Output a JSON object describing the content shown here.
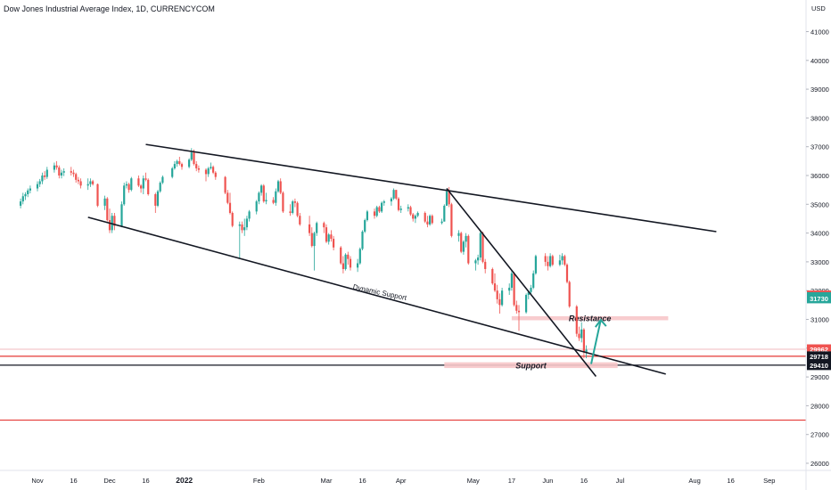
{
  "header": {
    "title": "Dow Jones Industrial Average Index, 1D, CURRENCYCOM"
  },
  "colors": {
    "up": "#26a69a",
    "down": "#ef5350",
    "line": "#131722",
    "zone": "#f7c6c9",
    "hline": "#e53935"
  },
  "chart_data": {
    "type": "candlestick",
    "currency": "USD",
    "y_ticks": [
      26000,
      27000,
      28000,
      29000,
      30000,
      31000,
      32000,
      33000,
      34000,
      35000,
      36000,
      37000,
      38000,
      39000,
      40000,
      41000
    ],
    "x_ticks": [
      {
        "label": "Nov",
        "date": "2021-11-01"
      },
      {
        "label": "16",
        "date": "2021-11-16"
      },
      {
        "label": "Dec",
        "date": "2021-12-01"
      },
      {
        "label": "16",
        "date": "2021-12-16"
      },
      {
        "label": "2022",
        "date": "2022-01-01"
      },
      {
        "label": "Feb",
        "date": "2022-02-01"
      },
      {
        "label": "Mar",
        "date": "2022-03-01"
      },
      {
        "label": "16",
        "date": "2022-03-16"
      },
      {
        "label": "Apr",
        "date": "2022-04-01"
      },
      {
        "label": "May",
        "date": "2022-05-01"
      },
      {
        "label": "17",
        "date": "2022-05-17"
      },
      {
        "label": "Jun",
        "date": "2022-06-01"
      },
      {
        "label": "16",
        "date": "2022-06-16"
      },
      {
        "label": "Jul",
        "date": "2022-07-01"
      },
      {
        "label": "Aug",
        "date": "2022-08-01"
      },
      {
        "label": "16",
        "date": "2022-08-16"
      },
      {
        "label": "Sep",
        "date": "2022-09-01"
      }
    ],
    "price_labels": [
      {
        "value": 31833,
        "text": "31833",
        "color": "#ef5350"
      },
      {
        "value": 31775,
        "text": "31775",
        "color": "#26a69a"
      },
      {
        "value": 31730,
        "text": "31730",
        "color": "#26a69a"
      },
      {
        "value": 29962,
        "text": "29962",
        "color": "#ef5350"
      },
      {
        "value": 29718,
        "text": "29718",
        "color": "#131722"
      },
      {
        "value": 29410,
        "text": "29410",
        "color": "#131722"
      }
    ],
    "horizontal_lines": [
      {
        "value": 29962,
        "color": "#f4c7c9"
      },
      {
        "value": 29718,
        "color": "#e53935"
      },
      {
        "value": 29410,
        "color": "#131722"
      },
      {
        "value": 27500,
        "color": "#e53935"
      }
    ],
    "trendlines": [
      {
        "from": [
          "2021-12-16",
          37080
        ],
        "to": [
          "2022-08-10",
          34050
        ]
      },
      {
        "from": [
          "2021-11-22",
          34550
        ],
        "to": [
          "2022-07-20",
          29100
        ]
      },
      {
        "from": [
          "2022-04-20",
          35550
        ],
        "to": [
          "2022-06-21",
          29020
        ]
      }
    ],
    "zones": [
      {
        "label": "Resistance",
        "from": "2022-05-17",
        "to": "2022-07-21",
        "low": 30970,
        "high": 31110
      },
      {
        "label": "Support",
        "from": "2022-04-19",
        "to": "2022-06-30",
        "low": 29310,
        "high": 29510
      }
    ],
    "annotations": [
      {
        "text": "Dynamic Support",
        "at": [
          "2022-03-23",
          31860
        ],
        "angle": 12
      }
    ],
    "arrow": {
      "from": [
        "2022-06-19",
        29450
      ],
      "to": [
        "2022-06-23",
        30980
      ]
    },
    "candles": [
      [
        "2021-10-25",
        34950,
        35200,
        34860,
        35100
      ],
      [
        "2021-10-26",
        35100,
        35400,
        35000,
        35280
      ],
      [
        "2021-10-27",
        35280,
        35420,
        35150,
        35350
      ],
      [
        "2021-10-28",
        35350,
        35550,
        35250,
        35480
      ],
      [
        "2021-10-29",
        35480,
        35650,
        35380,
        35550
      ],
      [
        "2021-11-01",
        35550,
        35800,
        35450,
        35700
      ],
      [
        "2021-11-02",
        35700,
        35880,
        35600,
        35800
      ],
      [
        "2021-11-03",
        35800,
        36100,
        35700,
        36000
      ],
      [
        "2021-11-04",
        36000,
        36150,
        35850,
        35950
      ],
      [
        "2021-11-05",
        35950,
        36300,
        35880,
        36200
      ],
      [
        "2021-11-08",
        36200,
        36450,
        36100,
        36350
      ],
      [
        "2021-11-09",
        36350,
        36500,
        36200,
        36280
      ],
      [
        "2021-11-10",
        36280,
        36350,
        35900,
        36000
      ],
      [
        "2021-11-11",
        36000,
        36200,
        35900,
        36100
      ],
      [
        "2021-11-12",
        36100,
        36250,
        35980,
        36150
      ],
      [
        "2021-11-15",
        36150,
        36300,
        36000,
        36100
      ],
      [
        "2021-11-16",
        36100,
        36200,
        35950,
        36050
      ],
      [
        "2021-11-17",
        36050,
        36100,
        35750,
        35850
      ],
      [
        "2021-11-18",
        35850,
        35950,
        35700,
        35800
      ],
      [
        "2021-11-19",
        35800,
        35900,
        35550,
        35650
      ],
      [
        "2021-11-22",
        35650,
        35900,
        35500,
        35700
      ],
      [
        "2021-11-23",
        35700,
        35900,
        35600,
        35800
      ],
      [
        "2021-11-24",
        35800,
        35850,
        35650,
        35700
      ],
      [
        "2021-11-26",
        35700,
        35720,
        34900,
        34950
      ],
      [
        "2021-11-29",
        34950,
        35300,
        34800,
        35200
      ],
      [
        "2021-11-30",
        35200,
        35250,
        34400,
        34450
      ],
      [
        "2021-12-01",
        34450,
        34850,
        34000,
        34100
      ],
      [
        "2021-12-02",
        34100,
        34700,
        34000,
        34600
      ],
      [
        "2021-12-03",
        34600,
        34700,
        34100,
        34250
      ],
      [
        "2021-12-06",
        34250,
        35100,
        34200,
        35000
      ],
      [
        "2021-12-07",
        35000,
        35750,
        34950,
        35650
      ],
      [
        "2021-12-08",
        35650,
        35800,
        35550,
        35700
      ],
      [
        "2021-12-09",
        35700,
        35750,
        35400,
        35500
      ],
      [
        "2021-12-10",
        35500,
        35950,
        35450,
        35900
      ],
      [
        "2021-12-13",
        35900,
        36000,
        35600,
        35650
      ],
      [
        "2021-12-14",
        35650,
        35700,
        35400,
        35550
      ],
      [
        "2021-12-15",
        35550,
        36000,
        35350,
        35900
      ],
      [
        "2021-12-16",
        35900,
        36100,
        35800,
        35850
      ],
      [
        "2021-12-17",
        35850,
        35900,
        35300,
        35350
      ],
      [
        "2021-12-20",
        35350,
        35400,
        34700,
        34950
      ],
      [
        "2021-12-21",
        34950,
        35500,
        34900,
        35450
      ],
      [
        "2021-12-22",
        35450,
        35800,
        35400,
        35750
      ],
      [
        "2021-12-23",
        35750,
        36000,
        35700,
        35950
      ],
      [
        "2021-12-27",
        35950,
        36300,
        35900,
        36250
      ],
      [
        "2021-12-28",
        36250,
        36500,
        36200,
        36400
      ],
      [
        "2021-12-29",
        36400,
        36550,
        36300,
        36500
      ],
      [
        "2021-12-30",
        36500,
        36650,
        36350,
        36400
      ],
      [
        "2021-12-31",
        36400,
        36450,
        36200,
        36300
      ],
      [
        "2022-01-03",
        36300,
        36600,
        36250,
        36550
      ],
      [
        "2022-01-04",
        36550,
        36950,
        36500,
        36800
      ],
      [
        "2022-01-05",
        36800,
        36900,
        36350,
        36400
      ],
      [
        "2022-01-06",
        36400,
        36500,
        36150,
        36250
      ],
      [
        "2022-01-07",
        36250,
        36350,
        36100,
        36200
      ],
      [
        "2022-01-10",
        36200,
        36250,
        35800,
        36050
      ],
      [
        "2022-01-11",
        36050,
        36300,
        35950,
        36250
      ],
      [
        "2022-01-12",
        36250,
        36450,
        36200,
        36300
      ],
      [
        "2022-01-13",
        36300,
        36350,
        36050,
        36100
      ],
      [
        "2022-01-14",
        36100,
        36150,
        35850,
        35950
      ],
      [
        "2022-01-18",
        35950,
        35980,
        35350,
        35400
      ],
      [
        "2022-01-19",
        35400,
        35500,
        35000,
        35050
      ],
      [
        "2022-01-20",
        35050,
        35400,
        34650,
        34700
      ],
      [
        "2022-01-21",
        34700,
        34750,
        34200,
        34250
      ],
      [
        "2022-01-24",
        34250,
        34400,
        33100,
        34300
      ],
      [
        "2022-01-25",
        34300,
        34400,
        34000,
        34100
      ],
      [
        "2022-01-26",
        34100,
        34500,
        33900,
        34200
      ],
      [
        "2022-01-27",
        34200,
        34600,
        34100,
        34500
      ],
      [
        "2022-01-28",
        34500,
        34800,
        34400,
        34750
      ],
      [
        "2022-01-31",
        34750,
        35150,
        34650,
        35100
      ],
      [
        "2022-02-01",
        35100,
        35450,
        35000,
        35400
      ],
      [
        "2022-02-02",
        35400,
        35700,
        35300,
        35650
      ],
      [
        "2022-02-03",
        35650,
        35700,
        35050,
        35100
      ],
      [
        "2022-02-04",
        35100,
        35400,
        35000,
        35150
      ],
      [
        "2022-02-07",
        35150,
        35250,
        35000,
        35050
      ],
      [
        "2022-02-08",
        35050,
        35550,
        34950,
        35450
      ],
      [
        "2022-02-09",
        35450,
        35850,
        35400,
        35800
      ],
      [
        "2022-02-10",
        35800,
        35900,
        35350,
        35400
      ],
      [
        "2022-02-11",
        35400,
        35450,
        34700,
        34750
      ],
      [
        "2022-02-14",
        34750,
        35000,
        34600,
        34700
      ],
      [
        "2022-02-15",
        34700,
        35150,
        34650,
        35100
      ],
      [
        "2022-02-16",
        35100,
        35200,
        34900,
        35050
      ],
      [
        "2022-02-17",
        35050,
        35100,
        34550,
        34600
      ],
      [
        "2022-02-18",
        34600,
        34700,
        34250,
        34300
      ],
      [
        "2022-02-22",
        34300,
        34600,
        33900,
        34000
      ],
      [
        "2022-02-23",
        34000,
        34200,
        33500,
        33550
      ],
      [
        "2022-02-24",
        33550,
        34050,
        32700,
        34000
      ],
      [
        "2022-02-25",
        34000,
        34400,
        33900,
        34350
      ],
      [
        "2022-02-28",
        34350,
        34400,
        34000,
        34200
      ],
      [
        "2022-03-01",
        34200,
        34300,
        33650,
        33700
      ],
      [
        "2022-03-02",
        33700,
        34000,
        33600,
        33950
      ],
      [
        "2022-03-03",
        33950,
        34100,
        33700,
        33800
      ],
      [
        "2022-03-04",
        33800,
        33900,
        33400,
        33500
      ],
      [
        "2022-03-07",
        33500,
        33550,
        32900,
        32950
      ],
      [
        "2022-03-08",
        32950,
        33200,
        32600,
        32750
      ],
      [
        "2022-03-09",
        32750,
        33300,
        32700,
        33250
      ],
      [
        "2022-03-10",
        33250,
        33350,
        32900,
        33100
      ],
      [
        "2022-03-11",
        33100,
        33200,
        32700,
        32800
      ],
      [
        "2022-03-14",
        32800,
        33100,
        32650,
        32950
      ],
      [
        "2022-03-15",
        32950,
        33500,
        32900,
        33450
      ],
      [
        "2022-03-16",
        33450,
        34100,
        33400,
        34050
      ],
      [
        "2022-03-17",
        34050,
        34500,
        34000,
        34450
      ],
      [
        "2022-03-18",
        34450,
        34800,
        34400,
        34750
      ],
      [
        "2022-03-21",
        34750,
        34850,
        34500,
        34600
      ],
      [
        "2022-03-22",
        34600,
        34950,
        34550,
        34900
      ],
      [
        "2022-03-23",
        34900,
        34950,
        34700,
        34750
      ],
      [
        "2022-03-24",
        34750,
        35100,
        34700,
        35050
      ],
      [
        "2022-03-25",
        35050,
        35150,
        34950,
        35100
      ],
      [
        "2022-03-28",
        35100,
        35250,
        34950,
        35200
      ],
      [
        "2022-03-29",
        35200,
        35550,
        35150,
        35500
      ],
      [
        "2022-03-30",
        35500,
        35500,
        35150,
        35200
      ],
      [
        "2022-03-31",
        35200,
        35250,
        34750,
        34800
      ],
      [
        "2022-04-01",
        34800,
        34950,
        34700,
        34850
      ],
      [
        "2022-04-04",
        34850,
        35000,
        34750,
        34900
      ],
      [
        "2022-04-05",
        34900,
        34950,
        34600,
        34650
      ],
      [
        "2022-04-06",
        34650,
        34700,
        34400,
        34500
      ],
      [
        "2022-04-07",
        34500,
        34650,
        34350,
        34600
      ],
      [
        "2022-04-08",
        34600,
        34750,
        34550,
        34700
      ],
      [
        "2022-04-11",
        34700,
        34750,
        34350,
        34400
      ],
      [
        "2022-04-12",
        34400,
        34600,
        34200,
        34300
      ],
      [
        "2022-04-13",
        34300,
        34650,
        34250,
        34600
      ],
      [
        "2022-04-14",
        34600,
        34650,
        34300,
        34350
      ],
      [
        "2022-04-18",
        34350,
        34500,
        34300,
        34400
      ],
      [
        "2022-04-19",
        34400,
        35000,
        34400,
        34950
      ],
      [
        "2022-04-20",
        34950,
        35550,
        34950,
        35450
      ],
      [
        "2022-04-21",
        35450,
        35600,
        34900,
        35000
      ],
      [
        "2022-04-22",
        35000,
        35050,
        33850,
        33900
      ],
      [
        "2022-04-25",
        33900,
        34100,
        33700,
        34000
      ],
      [
        "2022-04-26",
        34000,
        34050,
        33300,
        33350
      ],
      [
        "2022-04-27",
        33350,
        33750,
        33250,
        33700
      ],
      [
        "2022-04-28",
        33700,
        34000,
        33500,
        33900
      ],
      [
        "2022-04-29",
        33900,
        33950,
        32900,
        32950
      ],
      [
        "2022-05-02",
        32950,
        33100,
        32700,
        33050
      ],
      [
        "2022-05-03",
        33050,
        33250,
        32900,
        33150
      ],
      [
        "2022-05-04",
        33150,
        34100,
        33050,
        34000
      ],
      [
        "2022-05-05",
        34000,
        34050,
        32950,
        33000
      ],
      [
        "2022-05-06",
        33000,
        33100,
        32600,
        32750
      ],
      [
        "2022-05-09",
        32750,
        32800,
        32200,
        32250
      ],
      [
        "2022-05-10",
        32250,
        32600,
        31950,
        32000
      ],
      [
        "2022-05-11",
        32000,
        32200,
        31550,
        31700
      ],
      [
        "2022-05-12",
        31700,
        31900,
        31200,
        31500
      ],
      [
        "2022-05-13",
        31500,
        32100,
        31450,
        32000
      ],
      [
        "2022-05-16",
        32000,
        32250,
        31850,
        32100
      ],
      [
        "2022-05-17",
        32100,
        32700,
        32000,
        32600
      ],
      [
        "2022-05-18",
        32600,
        32650,
        31450,
        31500
      ],
      [
        "2022-05-19",
        31500,
        31650,
        31200,
        31300
      ],
      [
        "2022-05-20",
        31300,
        31500,
        30600,
        31250
      ],
      [
        "2022-05-23",
        31250,
        31900,
        31200,
        31850
      ],
      [
        "2022-05-24",
        31850,
        32000,
        31700,
        31950
      ],
      [
        "2022-05-25",
        31950,
        32200,
        31850,
        32100
      ],
      [
        "2022-05-26",
        32100,
        32700,
        32050,
        32600
      ],
      [
        "2022-05-27",
        32600,
        33250,
        32550,
        33200
      ],
      [
        "2022-05-31",
        33200,
        33300,
        32850,
        33000
      ],
      [
        "2022-06-01",
        33000,
        33200,
        32700,
        32850
      ],
      [
        "2022-06-02",
        32850,
        33300,
        32800,
        33200
      ],
      [
        "2022-06-03",
        33200,
        33250,
        32850,
        32900
      ],
      [
        "2022-06-06",
        32900,
        33250,
        32850,
        33050
      ],
      [
        "2022-06-07",
        33050,
        33300,
        32900,
        33200
      ],
      [
        "2022-06-08",
        33200,
        33250,
        32850,
        32900
      ],
      [
        "2022-06-09",
        32900,
        32950,
        32250,
        32300
      ],
      [
        "2022-06-10",
        32300,
        32350,
        31400,
        31450
      ],
      [
        "2022-06-13",
        31450,
        31500,
        30400,
        30500
      ],
      [
        "2022-06-14",
        30500,
        30750,
        30250,
        30350
      ],
      [
        "2022-06-15",
        30350,
        30900,
        30200,
        30650
      ],
      [
        "2022-06-16",
        30650,
        30700,
        29650,
        29850
      ],
      [
        "2022-06-17",
        29850,
        30100,
        29650,
        29950
      ]
    ]
  }
}
